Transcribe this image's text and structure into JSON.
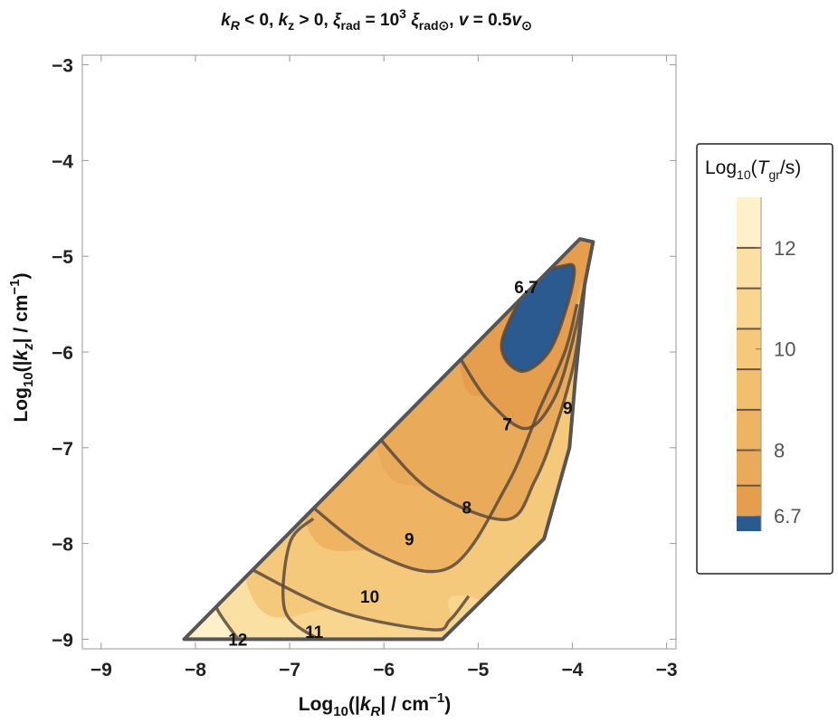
{
  "chart_data": {
    "type": "contour",
    "title_parts": {
      "kR": "k",
      "kR_sub": "R",
      "lt0": " < 0, ",
      "kz": "k",
      "kz_sub": "z",
      "gt0": " > 0, ",
      "xi": "ξ",
      "xi_sub": "rad",
      "eq": " = 10",
      "exp": "3",
      "xi2": " ξ",
      "xi2_sub": "rad⊙",
      "comma": ", ",
      "v": "v",
      "veq": " = 0.5",
      "v2": "v",
      "v2_sub": "⊙"
    },
    "xlabel_parts": {
      "pre": "Log",
      "sub": "10",
      "mid": "(|",
      "k": "k",
      "ksub": "R",
      "post": "| / cm",
      "exp": "−1",
      "close": ")"
    },
    "ylabel_parts": {
      "pre": "Log",
      "sub": "10",
      "mid": "(|",
      "k": "k",
      "ksub": "z",
      "post": "| / cm",
      "exp": "−1",
      "close": ")"
    },
    "xlim": [
      -9.2,
      -2.9
    ],
    "ylim": [
      -9.1,
      -2.9
    ],
    "xticks": [
      -9,
      -8,
      -7,
      -6,
      -5,
      -4,
      -3
    ],
    "xtick_labels": [
      "−9",
      "−8",
      "−7",
      "−6",
      "−5",
      "−4",
      "−3"
    ],
    "yticks": [
      -3,
      -4,
      -5,
      -6,
      -7,
      -8,
      -9
    ],
    "ytick_labels": [
      "−3",
      "−4",
      "−5",
      "−6",
      "−7",
      "−8",
      "−9"
    ],
    "region_outline": [
      [
        -8.12,
        -9.0
      ],
      [
        -5.38,
        -9.0
      ],
      [
        -4.3,
        -7.95
      ],
      [
        -4.03,
        -7.0
      ],
      [
        -3.97,
        -6.3
      ],
      [
        -3.87,
        -5.3
      ],
      [
        -3.78,
        -4.85
      ],
      [
        -3.92,
        -4.82
      ],
      [
        -8.12,
        -9.0
      ]
    ],
    "contours": [
      {
        "level": 12,
        "path": [
          [
            -7.55,
            -9.0
          ],
          [
            -7.8,
            -8.6
          ],
          [
            -7.6,
            -8.38
          ],
          [
            -7.45,
            -8.28
          ]
        ]
      },
      {
        "level": 11,
        "path": [
          [
            -6.7,
            -9.0
          ],
          [
            -7.05,
            -8.7
          ],
          [
            -7.0,
            -8.0
          ],
          [
            -6.75,
            -7.74
          ]
        ]
      },
      {
        "level": 10,
        "path": [
          [
            -7.5,
            -8.22
          ],
          [
            -6.5,
            -8.7
          ],
          [
            -5.5,
            -8.9
          ],
          [
            -5.3,
            -8.8
          ],
          [
            -5.1,
            -8.55
          ]
        ]
      },
      {
        "level": 9,
        "path": [
          [
            -6.9,
            -7.5
          ],
          [
            -6.1,
            -8.1
          ],
          [
            -5.3,
            -8.25
          ],
          [
            -4.7,
            -7.4
          ],
          [
            -4.35,
            -6.6
          ],
          [
            -4.08,
            -6.0
          ],
          [
            -3.95,
            -5.5
          ]
        ]
      },
      {
        "level": 8,
        "path": [
          [
            -6.1,
            -6.84
          ],
          [
            -5.5,
            -7.45
          ],
          [
            -4.7,
            -7.75
          ],
          [
            -4.4,
            -7.35
          ],
          [
            -4.18,
            -6.8
          ],
          [
            -3.98,
            -6.1
          ],
          [
            -3.88,
            -5.35
          ]
        ]
      },
      {
        "level": 7,
        "path": [
          [
            -5.2,
            -6.05
          ],
          [
            -4.9,
            -6.5
          ],
          [
            -4.5,
            -6.8
          ],
          [
            -4.2,
            -6.5
          ],
          [
            -4.0,
            -5.9
          ],
          [
            -3.85,
            -5.2
          ]
        ]
      },
      {
        "level": 6.7,
        "path": [
          [
            -4.42,
            -5.2
          ],
          [
            -4.75,
            -5.9
          ],
          [
            -4.55,
            -6.2
          ],
          [
            -4.25,
            -6.0
          ],
          [
            -4.05,
            -5.5
          ],
          [
            -3.98,
            -5.13
          ],
          [
            -4.1,
            -5.1
          ],
          [
            -4.42,
            -5.2
          ]
        ]
      }
    ],
    "contour_labels": [
      {
        "text": "12",
        "x": -7.55,
        "y": -9.0
      },
      {
        "text": "11",
        "x": -6.74,
        "y": -8.92
      },
      {
        "text": "10",
        "x": -6.15,
        "y": -8.55
      },
      {
        "text": "9",
        "x": -5.73,
        "y": -7.95
      },
      {
        "text": "8",
        "x": -5.12,
        "y": -7.62
      },
      {
        "text": "7",
        "x": -4.69,
        "y": -6.75
      },
      {
        "text": "9",
        "x": -4.05,
        "y": -6.58
      },
      {
        "text": "6.7",
        "x": -4.49,
        "y": -5.32
      }
    ],
    "legend": {
      "title_parts": {
        "pre": "Log",
        "sub": "10",
        "open": "(",
        "T": "T",
        "Tsub": "gr",
        "post": "/s)"
      },
      "placement": "right",
      "bands": [
        {
          "from": 6.4,
          "to": 6.7,
          "color": "#2a5a8f"
        },
        {
          "from": 6.7,
          "to": 7.3,
          "color": "#e49e4e"
        },
        {
          "from": 7.3,
          "to": 8.0,
          "color": "#e9aa5a"
        },
        {
          "from": 8.0,
          "to": 8.8,
          "color": "#eeb463"
        },
        {
          "from": 8.8,
          "to": 9.6,
          "color": "#f1bf6e"
        },
        {
          "from": 9.6,
          "to": 10.4,
          "color": "#f5c97c"
        },
        {
          "from": 10.4,
          "to": 11.2,
          "color": "#f9d68f"
        },
        {
          "from": 11.2,
          "to": 12.0,
          "color": "#fbe0a4"
        },
        {
          "from": 12.0,
          "to": 13.0,
          "color": "#fef1c9"
        }
      ],
      "lines": [
        7.3,
        8.0,
        8.8,
        9.6,
        10.4,
        11.2,
        12.0
      ],
      "ticks": [
        {
          "value": 12,
          "label": "12"
        },
        {
          "value": 10,
          "label": "10"
        },
        {
          "value": 8,
          "label": "8"
        },
        {
          "value": 6.7,
          "label": "6.7"
        }
      ]
    },
    "fill_bands": [
      {
        "level": 13,
        "color": "#fef1c9"
      },
      {
        "level": 12,
        "color": "#fbe0a4"
      },
      {
        "level": 11,
        "color": "#f9d68f"
      },
      {
        "level": 10,
        "color": "#f5c97c"
      },
      {
        "level": 9,
        "color": "#eeb463"
      },
      {
        "level": 8,
        "color": "#e9aa5a"
      },
      {
        "level": 7,
        "color": "#e49e4e"
      },
      {
        "level": 6.7,
        "color": "#2a5a8f"
      }
    ],
    "colors": {
      "outline": "#555555",
      "contour": "#5b4a3a",
      "frame": "#999999"
    }
  }
}
